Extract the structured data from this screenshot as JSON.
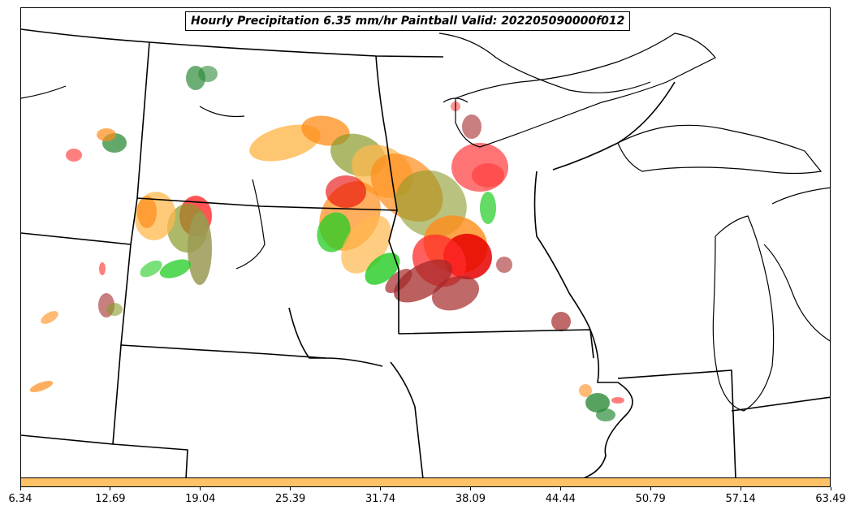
{
  "title": "Hourly Precipitation 6.35 mm/hr Paintball Valid: 202205090000f012",
  "colorbar": {
    "color": "#ffc266",
    "ticks": [
      "6.34",
      "12.69",
      "19.04",
      "25.39",
      "31.74",
      "38.09",
      "44.44",
      "50.79",
      "57.14",
      "63.49"
    ]
  },
  "palette": {
    "red": "#ff2a2a",
    "bright_red": "#e60000",
    "dark_red": "#a52a2a",
    "orange": "#ff8c1a",
    "light_orange": "#ffb84d",
    "green": "#22cc22",
    "dark_green": "#2e8b3a",
    "olive": "#8a9a2a",
    "tan": "#9a9a55"
  }
}
